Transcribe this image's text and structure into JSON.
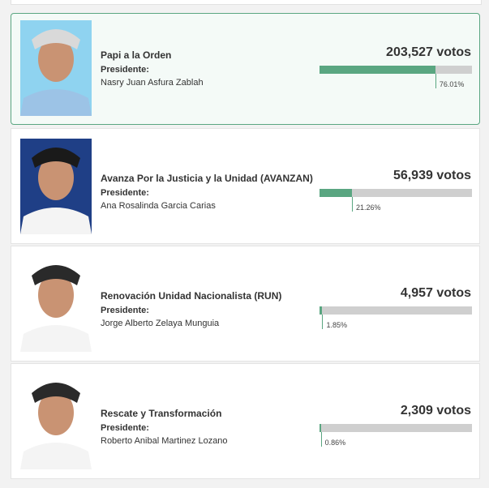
{
  "candidates": [
    {
      "party": "Papi a la Orden",
      "role": "Presidente:",
      "name": "Nasry Juan Asfura Zablah",
      "votes": "203,527 votos",
      "percent": 76.01,
      "percent_label": "76.01%"
    },
    {
      "party": "Avanza Por la Justicia y la Unidad (AVANZAN)",
      "role": "Presidente:",
      "name": "Ana Rosalinda Garcia Carias",
      "votes": "56,939 votos",
      "percent": 21.26,
      "percent_label": "21.26%"
    },
    {
      "party": "Renovación Unidad Nacionalista (RUN)",
      "role": "Presidente:",
      "name": "Jorge Alberto Zelaya Munguia",
      "votes": "4,957 votos",
      "percent": 1.85,
      "percent_label": "1.85%"
    },
    {
      "party": "Rescate y Transformación",
      "role": "Presidente:",
      "name": "Roberto Anibal Martinez Lozano",
      "votes": "2,309 votos",
      "percent": 0.86,
      "percent_label": "0.86%"
    }
  ]
}
